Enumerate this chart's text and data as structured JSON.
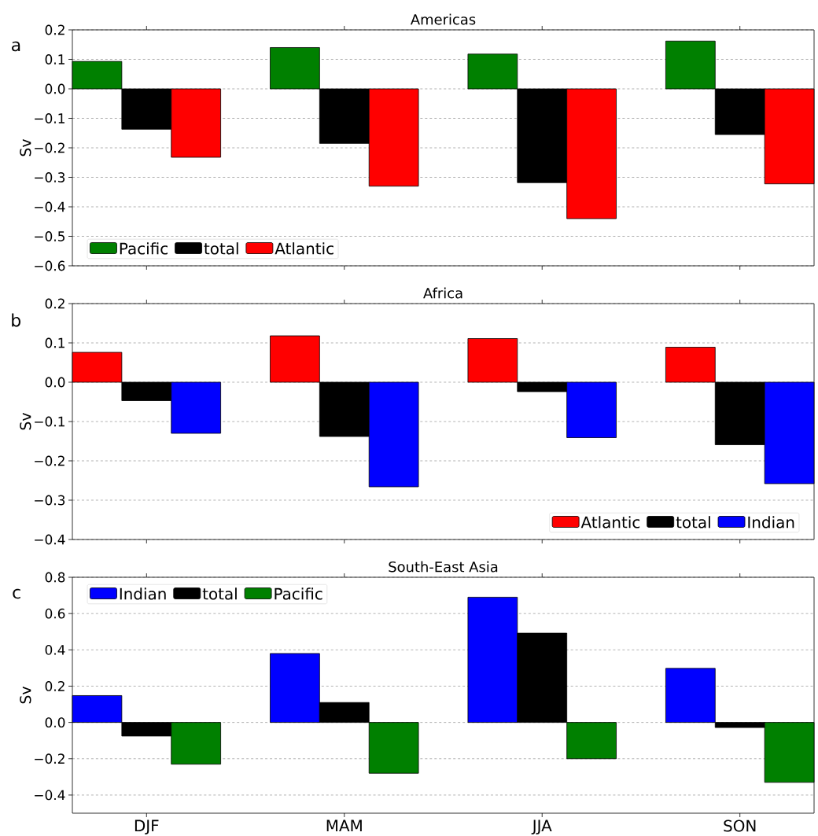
{
  "chart_data": [
    {
      "type": "bar",
      "title": "Americas",
      "ylabel": "Sv",
      "annotations": [
        "a"
      ],
      "categories": [
        null,
        null,
        null,
        null
      ],
      "series": [
        {
          "name": "Pacific",
          "color": "#008000",
          "values": [
            0.093,
            0.14,
            0.118,
            0.162
          ]
        },
        {
          "name": "total",
          "color": "#000000",
          "values": [
            -0.137,
            -0.185,
            -0.318,
            -0.155
          ]
        },
        {
          "name": "Atlantic",
          "color": "#ff0000",
          "values": [
            -0.232,
            -0.33,
            -0.44,
            -0.322
          ]
        }
      ],
      "ylim": [
        -0.6,
        0.2
      ],
      "yticks": [
        {
          "value": -0.6,
          "label": "−0.6"
        },
        {
          "value": -0.5,
          "label": "−0.5"
        },
        {
          "value": -0.4,
          "label": "−0.4"
        },
        {
          "value": -0.3,
          "label": "−0.3"
        },
        {
          "value": -0.2,
          "label": "−0.2"
        },
        {
          "value": -0.1,
          "label": "−0.1"
        },
        {
          "value": 0,
          "label": "0.0"
        },
        {
          "value": 0.1,
          "label": "0.1"
        },
        {
          "value": 0.2,
          "label": "0.2"
        }
      ],
      "grid": "y",
      "legend": "bottom left",
      "tick_labels": "y"
    },
    {
      "type": "bar",
      "title": "Africa",
      "ylabel": "Sv",
      "annotations": [
        "b"
      ],
      "categories": [
        null,
        null,
        null,
        null
      ],
      "series": [
        {
          "name": "Atlantic",
          "color": "#ff0000",
          "values": [
            0.076,
            0.118,
            0.111,
            0.089
          ]
        },
        {
          "name": "total",
          "color": "#000000",
          "values": [
            -0.047,
            -0.138,
            -0.024,
            -0.159
          ]
        },
        {
          "name": "Indian",
          "color": "#0000ff",
          "values": [
            -0.13,
            -0.266,
            -0.141,
            -0.258
          ]
        }
      ],
      "ylim": [
        -0.4,
        0.2
      ],
      "yticks": [
        {
          "value": -0.4,
          "label": "−0.4"
        },
        {
          "value": -0.3,
          "label": "−0.3"
        },
        {
          "value": -0.2,
          "label": "−0.2"
        },
        {
          "value": -0.1,
          "label": "−0.1"
        },
        {
          "value": 0,
          "label": "0.0"
        },
        {
          "value": 0.1,
          "label": "0.1"
        },
        {
          "value": 0.2,
          "label": "0.2"
        }
      ],
      "grid": "y",
      "legend": "bottom right",
      "tick_labels": "y"
    },
    {
      "type": "bar",
      "title": "South-East Asia",
      "ylabel": "Sv",
      "annotations": [
        "c"
      ],
      "categories": [
        "DJF",
        "MAM",
        "JJA",
        "SON"
      ],
      "series": [
        {
          "name": "Indian",
          "color": "#0000ff",
          "values": [
            0.148,
            0.38,
            0.69,
            0.298
          ]
        },
        {
          "name": "total",
          "color": "#000000",
          "values": [
            -0.075,
            0.11,
            0.492,
            -0.028
          ]
        },
        {
          "name": "Pacific",
          "color": "#008000",
          "values": [
            -0.23,
            -0.28,
            -0.2,
            -0.33
          ]
        }
      ],
      "ylim": [
        -0.5,
        0.8
      ],
      "yticks": [
        {
          "value": -0.4,
          "label": "−0.4"
        },
        {
          "value": -0.2,
          "label": "−0.2"
        },
        {
          "value": 0,
          "label": "0.0"
        },
        {
          "value": 0.2,
          "label": "0.2"
        },
        {
          "value": 0.4,
          "label": "0.4"
        },
        {
          "value": 0.6,
          "label": "0.6"
        },
        {
          "value": 0.8,
          "label": "0.8"
        }
      ],
      "grid": "y",
      "legend": "top left"
    }
  ]
}
